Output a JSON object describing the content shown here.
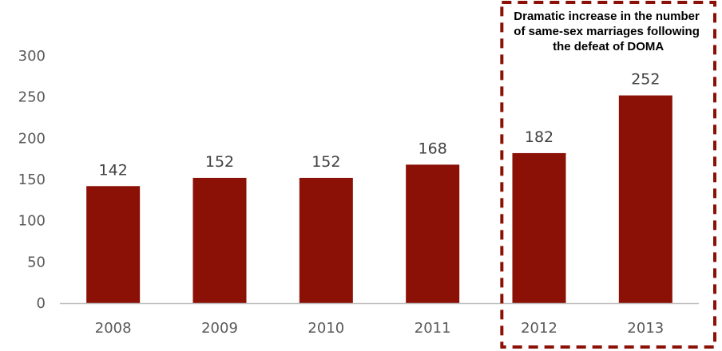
{
  "chart_data": {
    "type": "bar",
    "categories": [
      "2008",
      "2009",
      "2010",
      "2011",
      "2012",
      "2013"
    ],
    "values": [
      142,
      152,
      152,
      168,
      182,
      252
    ],
    "title": "",
    "xlabel": "",
    "ylabel": "",
    "ylim": [
      0,
      300
    ],
    "y_ticks": [
      "0",
      "50",
      "100",
      "150",
      "200",
      "250",
      "300"
    ],
    "grid": false,
    "bar_color": "#8B1106",
    "annotation": {
      "lines": [
        "Dramatic increase in the number",
        "of same-sex marriages following",
        "the defeat of DOMA"
      ],
      "border_color": "#8B1106",
      "border_style": "dashed",
      "covers_categories": [
        "2012",
        "2013"
      ]
    }
  }
}
